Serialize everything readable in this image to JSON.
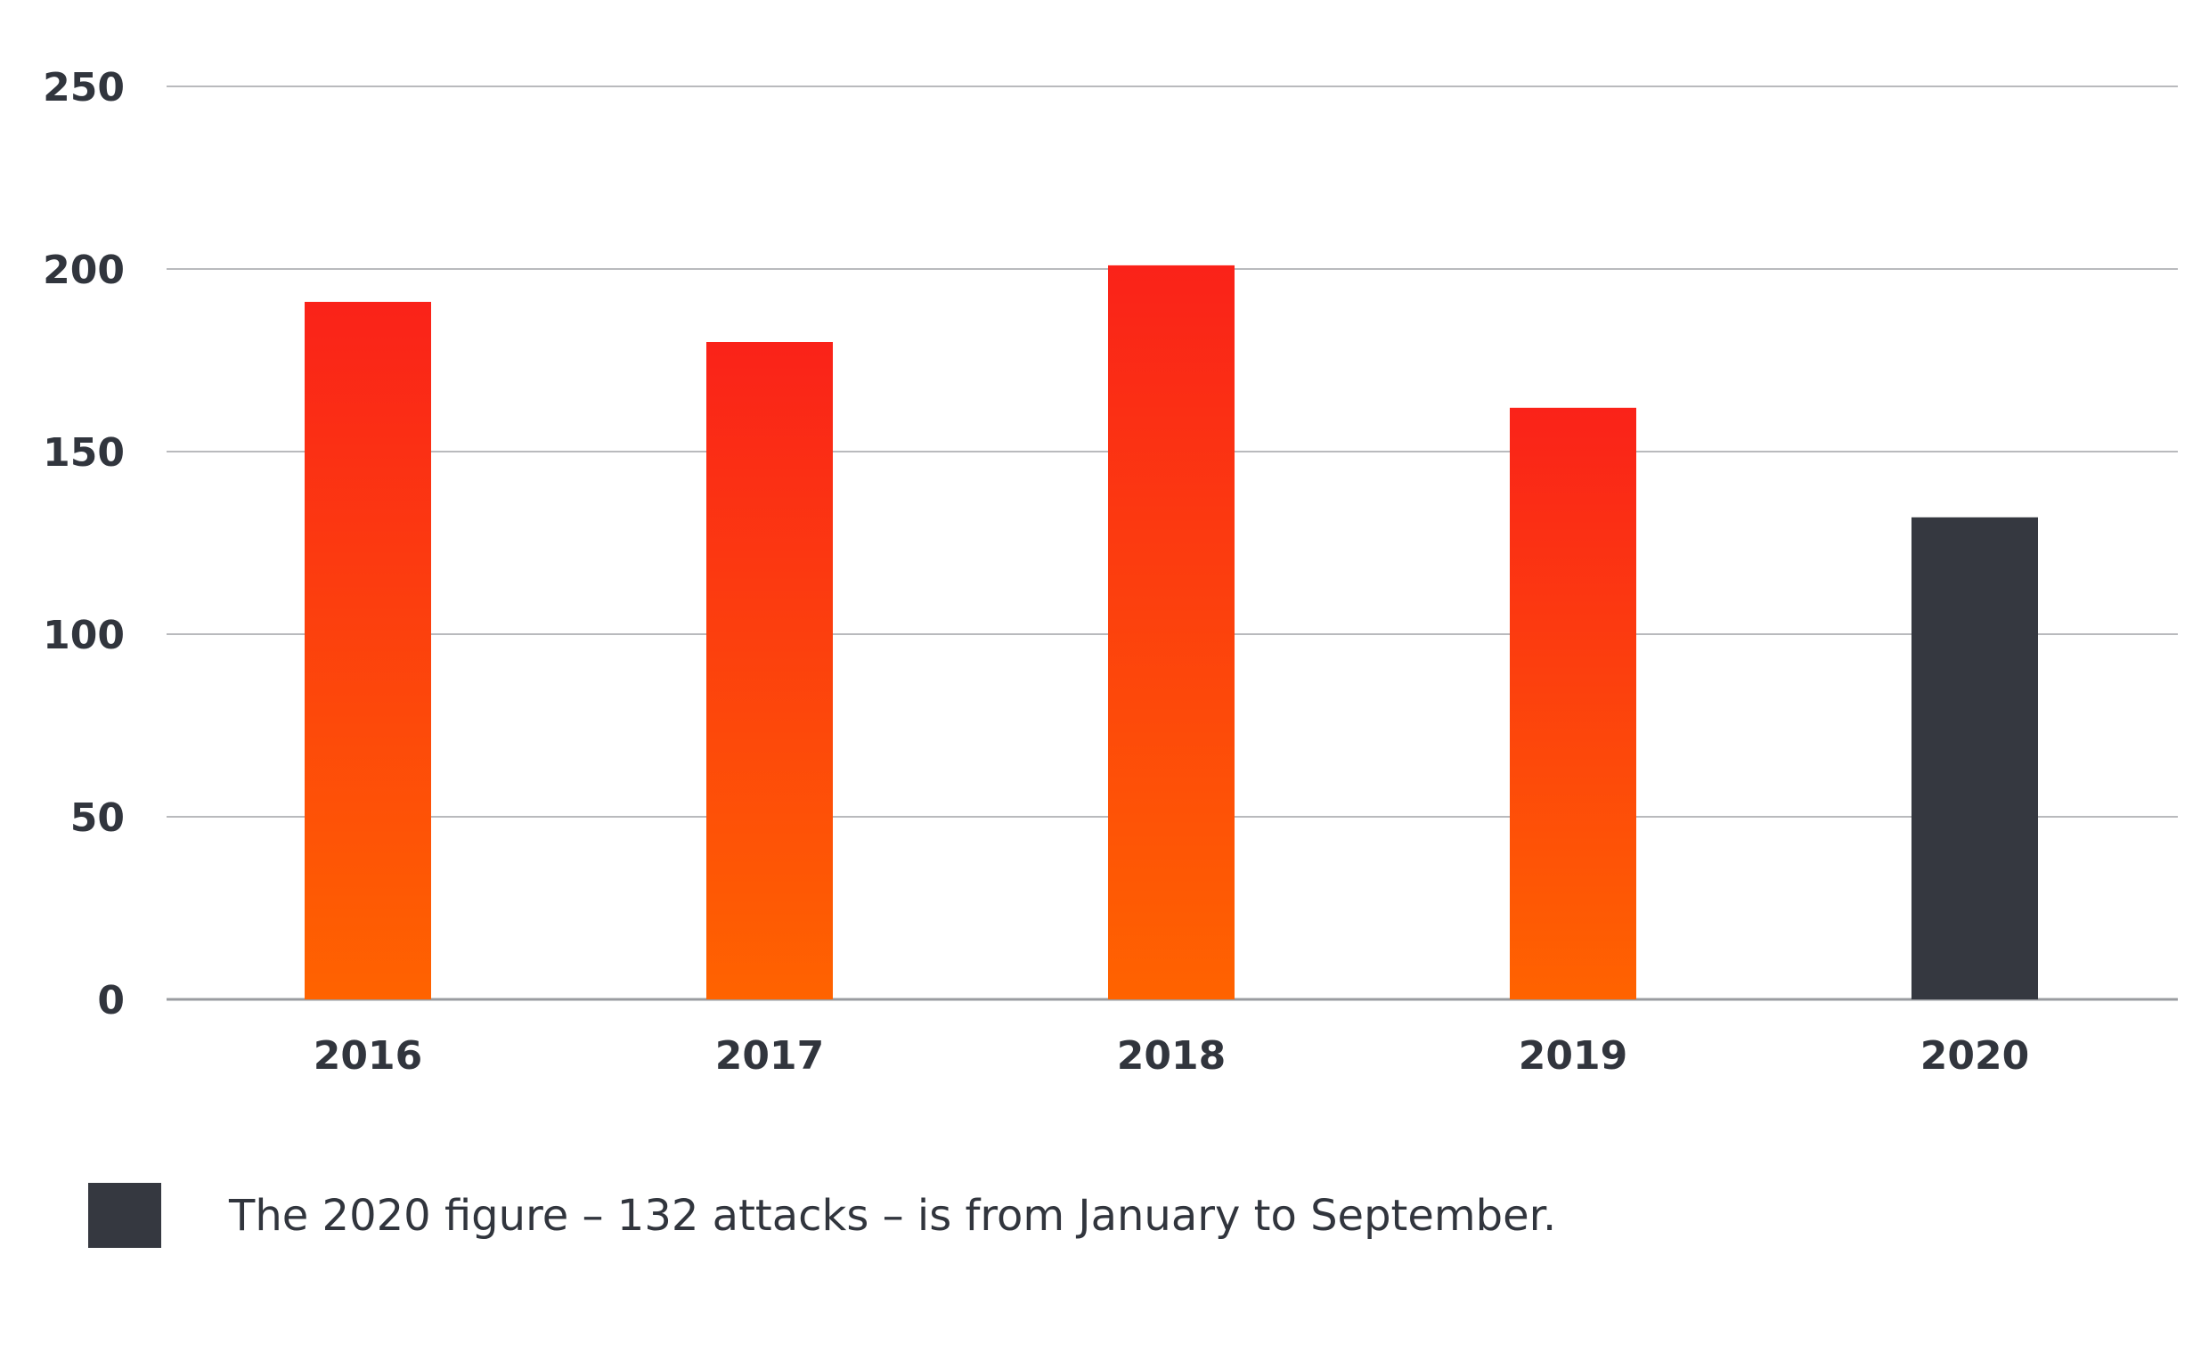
{
  "colors": {
    "bar_top": "#fa2219",
    "bar_bottom": "#ff6300",
    "highlight": "#353840",
    "text": "#31353d",
    "grid": "#b9babd"
  },
  "legend": {
    "swatch_color": "#353840",
    "text": "The 2020 figure – 132 attacks – is from January to September."
  },
  "chart_data": {
    "type": "bar",
    "categories": [
      "2016",
      "2017",
      "2018",
      "2019",
      "2020"
    ],
    "values": [
      191,
      180,
      201,
      162,
      132
    ],
    "highlight_category": "2020",
    "ylim": [
      0,
      250
    ],
    "yticks": [
      0,
      50,
      100,
      150,
      200,
      250
    ],
    "title": "",
    "xlabel": "",
    "ylabel": "",
    "grid": true
  }
}
